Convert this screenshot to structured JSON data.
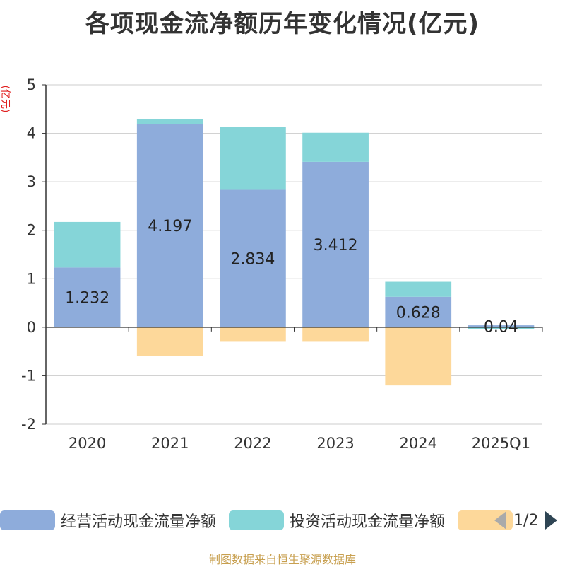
{
  "chart_data": {
    "type": "bar",
    "stacked": true,
    "title": "各项现金流净额历年变化情况(亿元)",
    "ylabel": "(亿元)",
    "categories": [
      "2020",
      "2021",
      "2022",
      "2023",
      "2024",
      "2025Q1"
    ],
    "ylim": [
      -2,
      5
    ],
    "yticks": [
      "5",
      "4",
      "3",
      "2",
      "1",
      "0",
      "-1",
      "-2"
    ],
    "series": [
      {
        "name": "经营活动现金流量净额",
        "color": "#8eacdb",
        "values": [
          1.232,
          4.197,
          2.834,
          3.412,
          0.628,
          0.04
        ],
        "labels": [
          "1.232",
          "4.197",
          "2.834",
          "3.412",
          "0.628",
          "0.04"
        ]
      },
      {
        "name": "投资活动现金流量净额",
        "color": "#85d5d8",
        "values": [
          0.94,
          0.1,
          1.3,
          0.6,
          0.31,
          -0.04
        ]
      },
      {
        "name": "",
        "color": "#fdd89a",
        "values": [
          0,
          -0.6,
          -0.3,
          -0.3,
          -1.2,
          0
        ]
      }
    ],
    "grid": true
  },
  "legend": {
    "items": [
      {
        "label": "经营活动现金流量净额",
        "color": "#8eacdb"
      },
      {
        "label": "投资活动现金流量净额",
        "color": "#85d5d8"
      },
      {
        "label": "",
        "color": "#fdd89a"
      }
    ],
    "page": "1/2"
  },
  "footer": "制图数据来自恒生聚源数据库"
}
